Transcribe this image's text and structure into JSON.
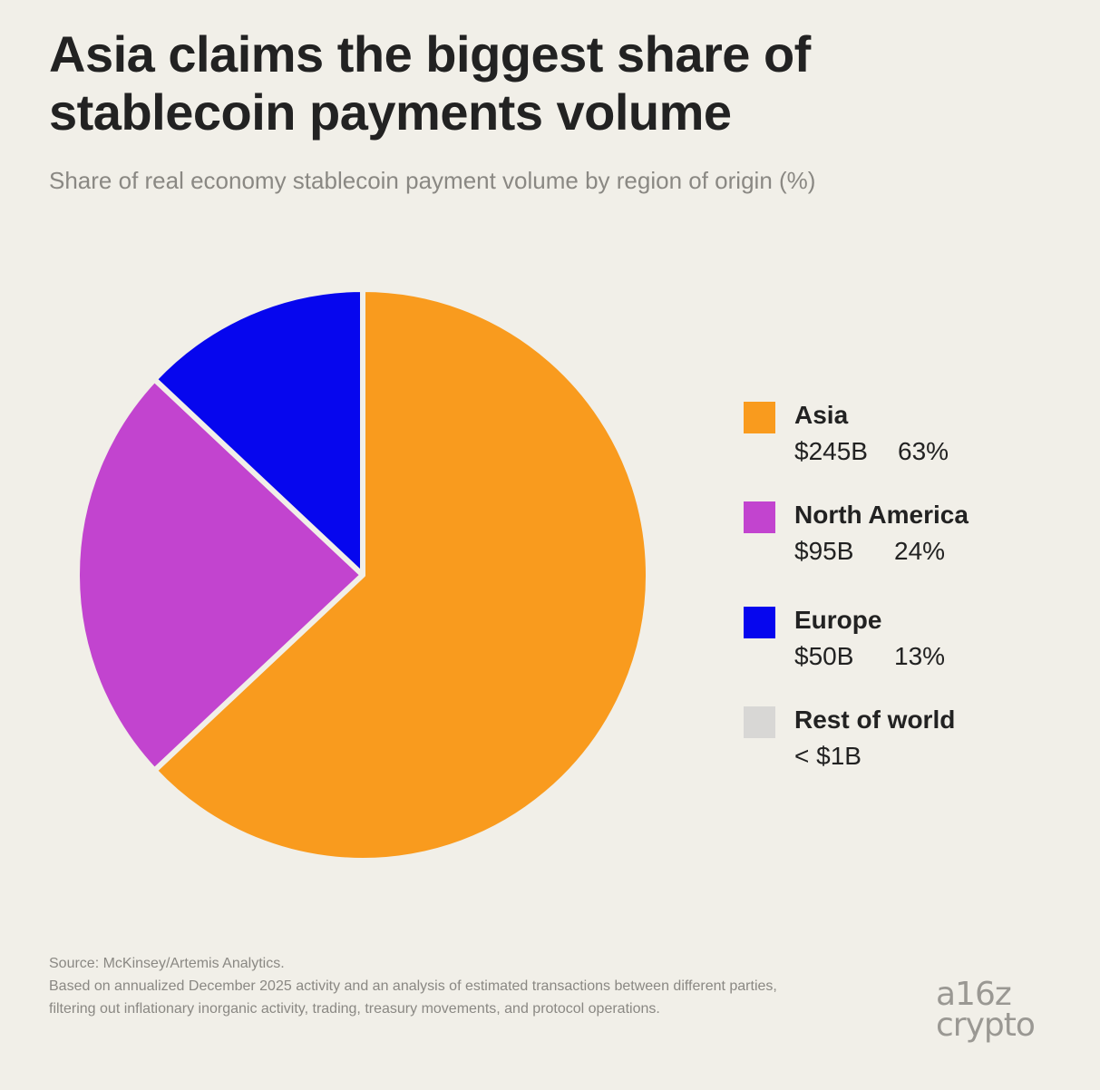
{
  "header": {
    "title": "Asia claims the biggest share of\nstablecoin payments volume",
    "subtitle": "Share of real economy stablecoin payment volume by region of origin (%)"
  },
  "legend": [
    {
      "name": "Asia",
      "amount": "$245B",
      "percent": "63%",
      "color": "#f99b1e"
    },
    {
      "name": "North America",
      "amount": "$95B",
      "percent": "24%",
      "color": "#c244cf"
    },
    {
      "name": "Europe",
      "amount": "$50B",
      "percent": "13%",
      "color": "#0606ee"
    },
    {
      "name": "Rest of world",
      "amount": "< $1B",
      "percent": "",
      "color": "#d8d7d5"
    }
  ],
  "footnote": {
    "source": "Source: McKinsey/Artemis Analytics.",
    "note": "Based on annualized December 2025 activity and an analysis of estimated transactions between different parties, filtering out inflationary inorganic activity, trading, treasury movements, and protocol operations."
  },
  "logo": {
    "line1": "a16z",
    "line2": "crypto"
  },
  "chart_data": {
    "type": "pie",
    "title": "Asia claims the biggest share of stablecoin payments volume",
    "subtitle": "Share of real economy stablecoin payment volume by region of origin (%)",
    "categories": [
      "Asia",
      "North America",
      "Europe",
      "Rest of world"
    ],
    "values": [
      63,
      24,
      13,
      0
    ],
    "amounts": [
      "$245B",
      "$95B",
      "$50B",
      "< $1B"
    ],
    "colors": [
      "#f99b1e",
      "#c244cf",
      "#0606ee",
      "#d8d7d5"
    ],
    "start_angle_deg": 0,
    "direction": "clockwise",
    "legend_position": "right"
  }
}
